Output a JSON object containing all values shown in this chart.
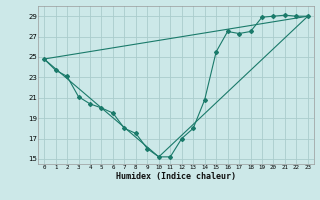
{
  "xlabel": "Humidex (Indice chaleur)",
  "background_color": "#cce8e8",
  "grid_color": "#aacccc",
  "line_color": "#1a7a6a",
  "xlim": [
    -0.5,
    23.5
  ],
  "ylim": [
    14.5,
    30.0
  ],
  "xticks": [
    0,
    1,
    2,
    3,
    4,
    5,
    6,
    7,
    8,
    9,
    10,
    11,
    12,
    13,
    14,
    15,
    16,
    17,
    18,
    19,
    20,
    21,
    22,
    23
  ],
  "yticks": [
    15,
    17,
    19,
    21,
    23,
    25,
    27,
    29
  ],
  "series1_x": [
    0,
    1,
    2,
    3,
    4,
    5,
    6,
    7,
    8,
    9,
    10,
    11,
    12,
    13,
    14,
    15,
    16,
    17,
    18,
    19,
    20,
    21,
    22,
    23
  ],
  "series1_y": [
    24.8,
    23.7,
    23.1,
    21.1,
    20.4,
    20.0,
    19.5,
    18.0,
    17.5,
    16.0,
    15.2,
    15.2,
    17.0,
    18.0,
    20.8,
    25.5,
    27.5,
    27.3,
    27.5,
    28.9,
    29.0,
    29.1,
    29.0,
    29.0
  ],
  "line1_x": [
    0,
    23
  ],
  "line1_y": [
    24.8,
    29.0
  ],
  "line2_x": [
    0,
    10
  ],
  "line2_y": [
    24.8,
    15.2
  ],
  "line3_x": [
    10,
    23
  ],
  "line3_y": [
    15.2,
    29.0
  ]
}
